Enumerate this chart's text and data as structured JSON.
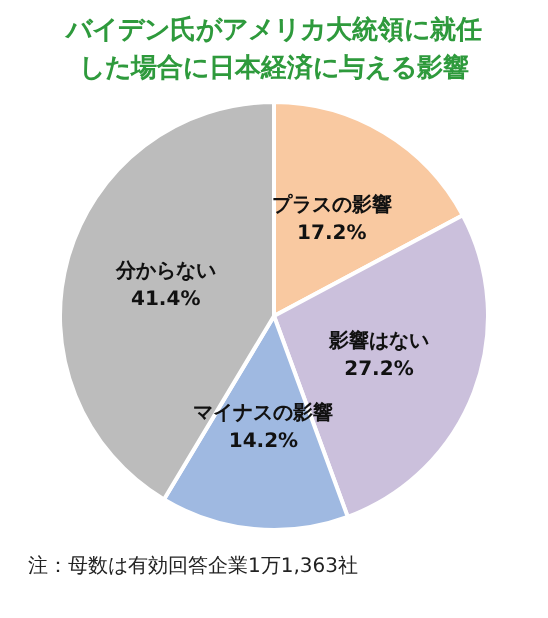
{
  "chart_data": {
    "type": "pie",
    "title": "バイデン氏がアメリカ大統領に就任した場合に日本経済に与える影響",
    "categories": [
      "プラスの影響",
      "影響はない",
      "マイナスの影響",
      "分からない"
    ],
    "values": [
      17.2,
      27.2,
      14.2,
      41.4
    ],
    "colors": [
      "#f9c9a1",
      "#cbc0dc",
      "#9fb9e1",
      "#bcbcbc"
    ],
    "value_labels": [
      "17.2%",
      "27.2%",
      "14.2%",
      "41.4%"
    ],
    "legend": false,
    "annotations": [
      "注：母数は有効回答企業1万1,363社"
    ]
  }
}
